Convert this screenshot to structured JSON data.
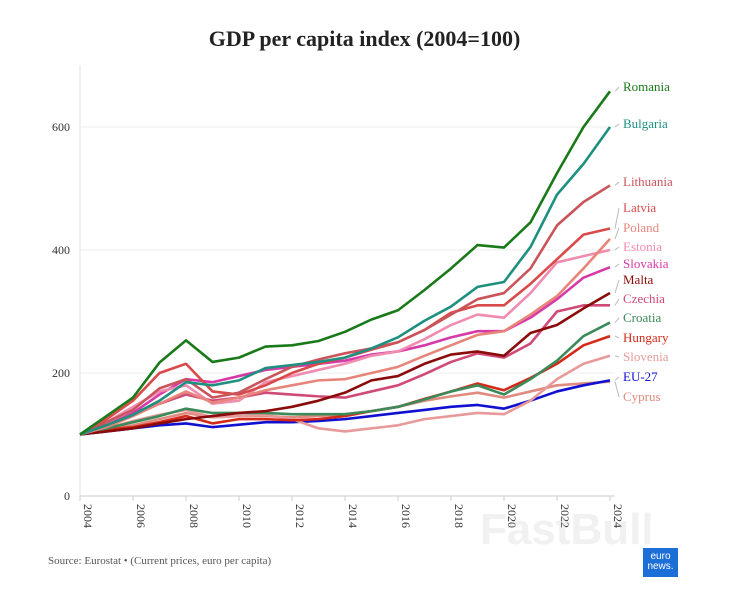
{
  "chart_data": {
    "type": "line",
    "title": "GDP per capita index (2004=100)",
    "x": [
      2004,
      2005,
      2006,
      2007,
      2008,
      2009,
      2010,
      2011,
      2012,
      2013,
      2014,
      2015,
      2016,
      2017,
      2018,
      2019,
      2020,
      2021,
      2022,
      2023,
      2024
    ],
    "xticks": [
      "2004",
      "2006",
      "2008",
      "2010",
      "2012",
      "2014",
      "2016",
      "2018",
      "2020",
      "2022",
      "2024"
    ],
    "yticks": [
      "0",
      "200",
      "400",
      "600"
    ],
    "ylim": [
      0,
      700
    ],
    "grid": true,
    "legend": "direct labels at right",
    "series": [
      {
        "name": "Romania",
        "color": "#1a7a1a",
        "values": [
          100,
          130,
          160,
          217,
          253,
          218,
          225,
          243,
          245,
          252,
          267,
          287,
          302,
          335,
          370,
          408,
          404,
          445,
          525,
          600,
          658
        ]
      },
      {
        "name": "Bulgaria",
        "color": "#1f9080",
        "values": [
          100,
          115,
          132,
          155,
          185,
          180,
          188,
          208,
          213,
          218,
          225,
          240,
          258,
          285,
          308,
          340,
          348,
          405,
          490,
          540,
          600
        ]
      },
      {
        "name": "Lithuania",
        "color": "#c9545a",
        "values": [
          100,
          120,
          140,
          175,
          190,
          160,
          168,
          190,
          210,
          222,
          232,
          240,
          250,
          270,
          295,
          320,
          330,
          370,
          440,
          478,
          505
        ]
      },
      {
        "name": "Latvia",
        "color": "#d94a4a",
        "values": [
          100,
          125,
          155,
          200,
          215,
          170,
          165,
          180,
          200,
          215,
          225,
          238,
          250,
          270,
          298,
          310,
          310,
          345,
          385,
          425,
          435
        ]
      },
      {
        "name": "Poland",
        "color": "#e8857a",
        "values": [
          100,
          112,
          130,
          150,
          170,
          152,
          160,
          172,
          180,
          188,
          190,
          200,
          210,
          228,
          245,
          262,
          268,
          295,
          325,
          370,
          418
        ]
      },
      {
        "name": "Estonia",
        "color": "#f08cb0",
        "values": [
          100,
          120,
          145,
          170,
          180,
          150,
          155,
          185,
          195,
          205,
          215,
          228,
          235,
          255,
          278,
          295,
          290,
          330,
          380,
          390,
          400
        ]
      },
      {
        "name": "Slovakia",
        "color": "#d63aa8",
        "values": [
          100,
          115,
          135,
          165,
          190,
          185,
          195,
          205,
          210,
          215,
          220,
          230,
          235,
          245,
          258,
          268,
          268,
          290,
          320,
          355,
          372
        ]
      },
      {
        "name": "Malta",
        "color": "#8b0a0a",
        "values": [
          100,
          105,
          110,
          118,
          125,
          130,
          135,
          138,
          145,
          155,
          168,
          188,
          195,
          215,
          230,
          235,
          228,
          265,
          278,
          305,
          330
        ]
      },
      {
        "name": "Czechia",
        "color": "#d04a78",
        "values": [
          100,
          115,
          135,
          150,
          165,
          155,
          160,
          168,
          165,
          162,
          160,
          170,
          180,
          198,
          218,
          232,
          225,
          248,
          300,
          310,
          310
        ]
      },
      {
        "name": "Croatia",
        "color": "#3a8a5a",
        "values": [
          100,
          110,
          120,
          130,
          142,
          135,
          135,
          135,
          133,
          133,
          133,
          138,
          145,
          157,
          170,
          180,
          165,
          190,
          220,
          260,
          282
        ]
      },
      {
        "name": "Hungary",
        "color": "#d42a1a",
        "values": [
          100,
          108,
          112,
          120,
          130,
          118,
          125,
          125,
          123,
          125,
          130,
          138,
          145,
          158,
          170,
          183,
          172,
          192,
          215,
          245,
          260
        ]
      },
      {
        "name": "Slovenia",
        "color": "#e89a9a",
        "values": [
          100,
          110,
          122,
          132,
          140,
          128,
          130,
          132,
          125,
          110,
          105,
          110,
          115,
          125,
          130,
          135,
          133,
          155,
          190,
          215,
          228
        ]
      },
      {
        "name": "EU-27",
        "color": "#1010d0",
        "values": [
          100,
          105,
          110,
          115,
          118,
          112,
          116,
          120,
          120,
          122,
          125,
          130,
          135,
          140,
          145,
          148,
          142,
          155,
          170,
          180,
          188
        ]
      },
      {
        "name": "Cyprus",
        "color": "#e08a80",
        "values": [
          100,
          108,
          115,
          125,
          135,
          128,
          130,
          130,
          128,
          130,
          133,
          138,
          145,
          155,
          162,
          168,
          160,
          170,
          180,
          183,
          186
        ]
      }
    ]
  },
  "footer": {
    "source": "Source: Eurostat • (Current prices, euro per capita)"
  },
  "logo": {
    "line1": "euro",
    "line2": "news."
  },
  "watermark": "FastBull"
}
